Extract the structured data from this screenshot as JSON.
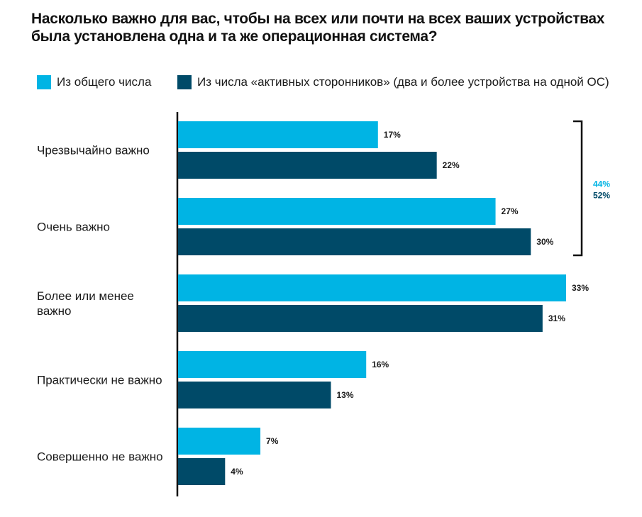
{
  "chart_data": {
    "type": "bar",
    "orientation": "horizontal",
    "title_lines": [
      "Насколько важно для вас, чтобы на всех или почти на всех ваших устройствах",
      "была установлена одна и та же операционная система?"
    ],
    "categories": [
      [
        "Чрезвычайно важно"
      ],
      [
        "Очень важно"
      ],
      [
        "Более или менее",
        "важно"
      ],
      [
        "Практически не важно"
      ],
      [
        "Совершенно не важно"
      ]
    ],
    "series": [
      {
        "name": "Из общего числа",
        "color": "#00b4e4",
        "values": [
          17,
          27,
          33,
          16,
          7
        ],
        "labels": [
          "17%",
          "27%",
          "33%",
          "16%",
          "7%"
        ]
      },
      {
        "name": "Из числа «активных сторонников» (два и более устройства на одной ОС)",
        "color": "#004a68",
        "values": [
          22,
          30,
          31,
          13,
          4
        ],
        "labels": [
          "22%",
          "30%",
          "31%",
          "13%",
          "4%"
        ]
      }
    ],
    "xlim": [
      0,
      33
    ],
    "grid": false,
    "legend_position": "top",
    "annotation": {
      "type": "bracket",
      "spans_categories": [
        "Чрезвычайно важно",
        "Очень важно"
      ],
      "labels": [
        {
          "text": "44%",
          "series": 0
        },
        {
          "text": "52%",
          "series": 1
        }
      ]
    }
  }
}
